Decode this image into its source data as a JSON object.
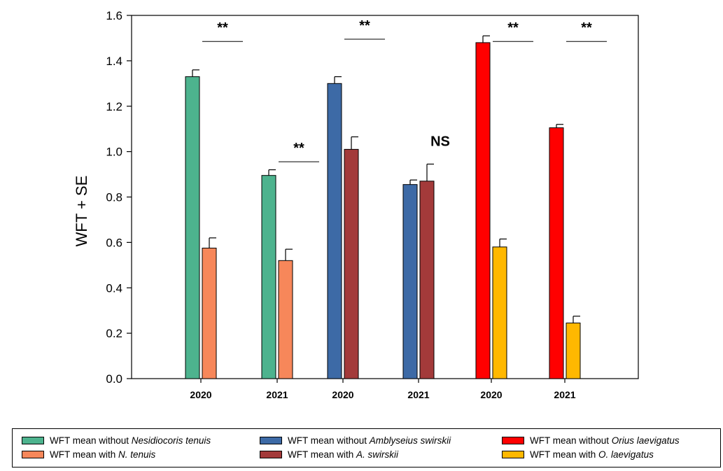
{
  "chart_data": {
    "type": "bar",
    "ylabel": "WFT + SE",
    "ylim": [
      0,
      1.6
    ],
    "yticks": [
      "0.0",
      "0.2",
      "0.4",
      "0.6",
      "0.8",
      "1.0",
      "1.2",
      "1.4",
      "1.6"
    ],
    "categories": [
      "2020",
      "2021",
      "2020",
      "2021",
      "2020",
      "2021"
    ],
    "groups": [
      {
        "category": "2020",
        "bars": [
          {
            "value": 1.33,
            "se": 0.03,
            "color": "#4db38e"
          },
          {
            "value": 0.575,
            "se": 0.045,
            "color": "#f7875a"
          }
        ],
        "significance": "**",
        "sig_y": 1.55
      },
      {
        "category": "2021",
        "bars": [
          {
            "value": 0.895,
            "se": 0.025,
            "color": "#4db38e"
          },
          {
            "value": 0.52,
            "se": 0.05,
            "color": "#f7875a"
          }
        ],
        "significance": "**",
        "sig_y": 1.02
      },
      {
        "category": "2020",
        "bars": [
          {
            "value": 1.3,
            "se": 0.03,
            "color": "#3d6aa6"
          },
          {
            "value": 1.01,
            "se": 0.055,
            "color": "#a33a3a"
          }
        ],
        "significance": "**",
        "sig_y": 1.56
      },
      {
        "category": "2021",
        "bars": [
          {
            "value": 0.855,
            "se": 0.02,
            "color": "#3d6aa6"
          },
          {
            "value": 0.87,
            "se": 0.075,
            "color": "#a33a3a"
          }
        ],
        "significance": "NS",
        "sig_y": 1.05
      },
      {
        "category": "2020",
        "bars": [
          {
            "value": 1.48,
            "se": 0.03,
            "color": "#ff0000"
          },
          {
            "value": 0.58,
            "se": 0.035,
            "color": "#ffb800"
          }
        ],
        "significance": "**",
        "sig_y": 1.55
      },
      {
        "category": "2021",
        "bars": [
          {
            "value": 1.105,
            "se": 0.015,
            "color": "#ff0000"
          },
          {
            "value": 0.245,
            "se": 0.03,
            "color": "#ffb800"
          }
        ],
        "significance": "**",
        "sig_y": 1.55
      }
    ],
    "legend": [
      {
        "prefix": "WFT mean without ",
        "italic": "Nesidiocoris tenuis",
        "color": "#4db38e"
      },
      {
        "prefix": "WFT mean with ",
        "italic": "N. tenuis",
        "color": "#f7875a"
      },
      {
        "prefix": "WFT mean without ",
        "italic": "Amblyseius swirskii",
        "color": "#3d6aa6"
      },
      {
        "prefix": "WFT mean with ",
        "italic": "A. swirskii",
        "color": "#a33a3a"
      },
      {
        "prefix": "WFT mean without ",
        "italic": "Orius laevigatus",
        "color": "#ff0000"
      },
      {
        "prefix": "WFT mean with ",
        "italic": "O. laevigatus",
        "color": "#ffb800"
      }
    ],
    "grid": false,
    "legend_placement": "bottom"
  }
}
